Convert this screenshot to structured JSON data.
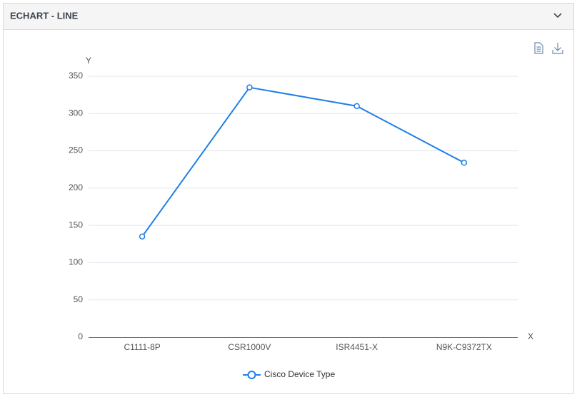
{
  "panel": {
    "title": "ECHART - LINE"
  },
  "chart_data": {
    "type": "line",
    "x_label": "X",
    "y_label": "Y",
    "categories": [
      "C1111-8P",
      "CSR1000V",
      "ISR4451-X",
      "N9K-C9372TX"
    ],
    "series": [
      {
        "name": "Cisco Device Type",
        "color": "#1f7fe6",
        "values": [
          135,
          335,
          310,
          234
        ]
      }
    ],
    "ylim": [
      0,
      350
    ],
    "yticks": [
      0,
      50,
      100,
      150,
      200,
      250,
      300,
      350
    ],
    "grid": true,
    "legend": "bottom"
  }
}
